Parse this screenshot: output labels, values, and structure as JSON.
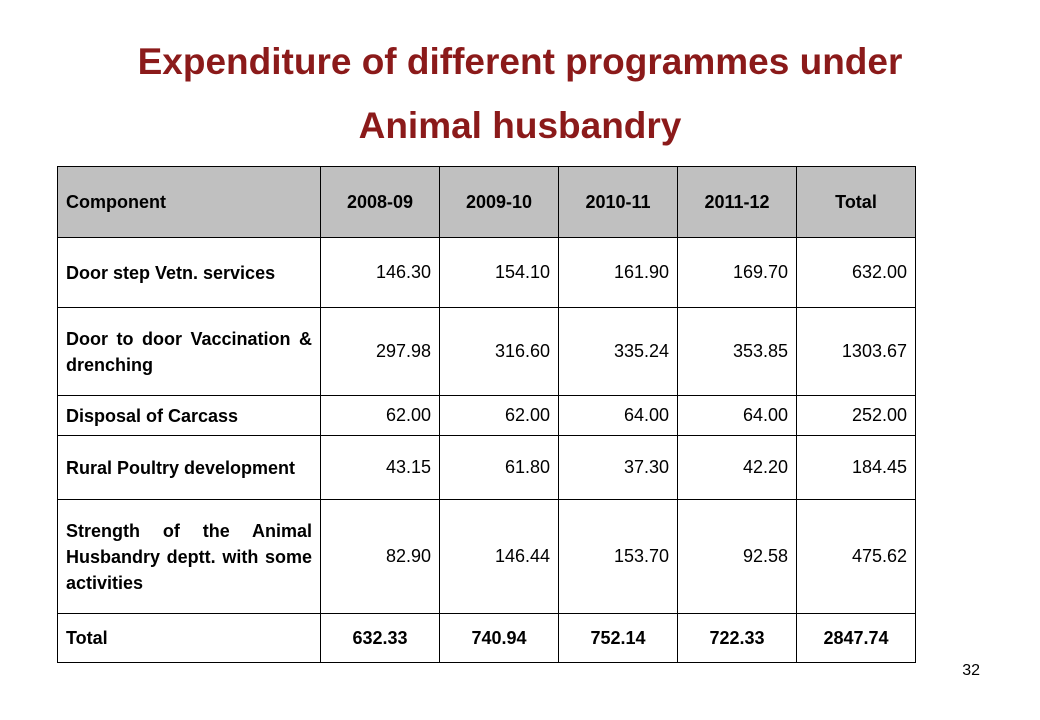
{
  "title": {
    "line1": "Expenditure of different programmes under",
    "line2": "Animal husbandry"
  },
  "colors": {
    "title": "#8b1a1a",
    "header_bg": "#c0c0c0"
  },
  "table": {
    "headers": [
      "Component",
      "2008-09",
      "2009-10",
      "2010-11",
      "2011-12",
      "Total"
    ],
    "rows": [
      {
        "component": "Door step Vetn. services",
        "values": [
          "146.30",
          "154.10",
          "161.90",
          "169.70",
          "632.00"
        ]
      },
      {
        "component": "Door to door Vaccination & drenching",
        "values": [
          "297.98",
          "316.60",
          "335.24",
          "353.85",
          "1303.67"
        ]
      },
      {
        "component": "Disposal of Carcass",
        "values": [
          "62.00",
          "62.00",
          "64.00",
          "64.00",
          "252.00"
        ]
      },
      {
        "component": "Rural Poultry development",
        "values": [
          "43.15",
          "61.80",
          "37.30",
          "42.20",
          "184.45"
        ]
      },
      {
        "component": "Strength of the Animal Husbandry deptt. with some activities",
        "values": [
          "82.90",
          "146.44",
          "153.70",
          "92.58",
          "475.62"
        ]
      },
      {
        "component": "Total",
        "values": [
          "632.33",
          "740.94",
          "752.14",
          "722.33",
          "2847.74"
        ]
      }
    ]
  },
  "page_number": "32"
}
